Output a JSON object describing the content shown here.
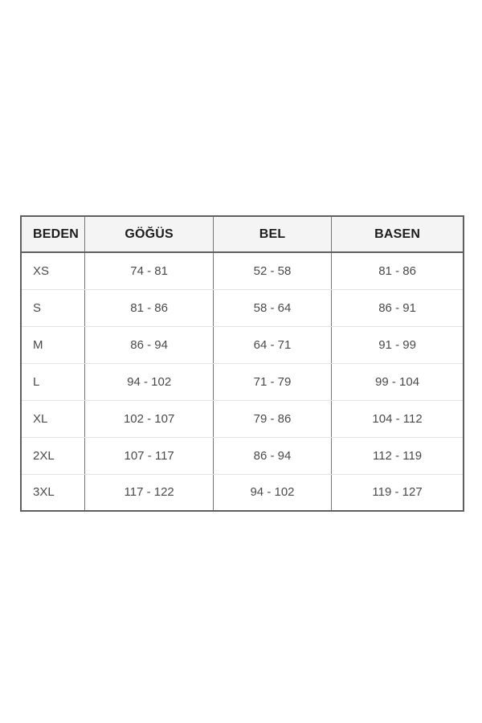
{
  "chart_data": {
    "type": "table",
    "title": "",
    "columns": [
      "BEDEN",
      "GÖĞÜS",
      "BEL",
      "BASEN"
    ],
    "rows": [
      [
        "XS",
        "74 - 81",
        "52 - 58",
        "81 - 86"
      ],
      [
        "S",
        "81 - 86",
        "58 - 64",
        "86 - 91"
      ],
      [
        "M",
        "86 - 94",
        "64 - 71",
        "91 - 99"
      ],
      [
        "L",
        "94 - 102",
        "71 - 79",
        "99 - 104"
      ],
      [
        "XL",
        "102 - 107",
        "79 - 86",
        "104 - 112"
      ],
      [
        "2XL",
        "107 - 117",
        "86 - 94",
        "112 - 119"
      ],
      [
        "3XL",
        "117 - 122",
        "94 - 102",
        "119 - 127"
      ]
    ]
  },
  "colors": {
    "page_bg": "#ffffff",
    "outer_border": "#5f5f5f",
    "col_border": "#757575",
    "row_border": "#e3e3e3",
    "header_bg": "#f4f4f4",
    "header_text": "#1d1d1d",
    "cell_text": "#4a4a4a"
  }
}
